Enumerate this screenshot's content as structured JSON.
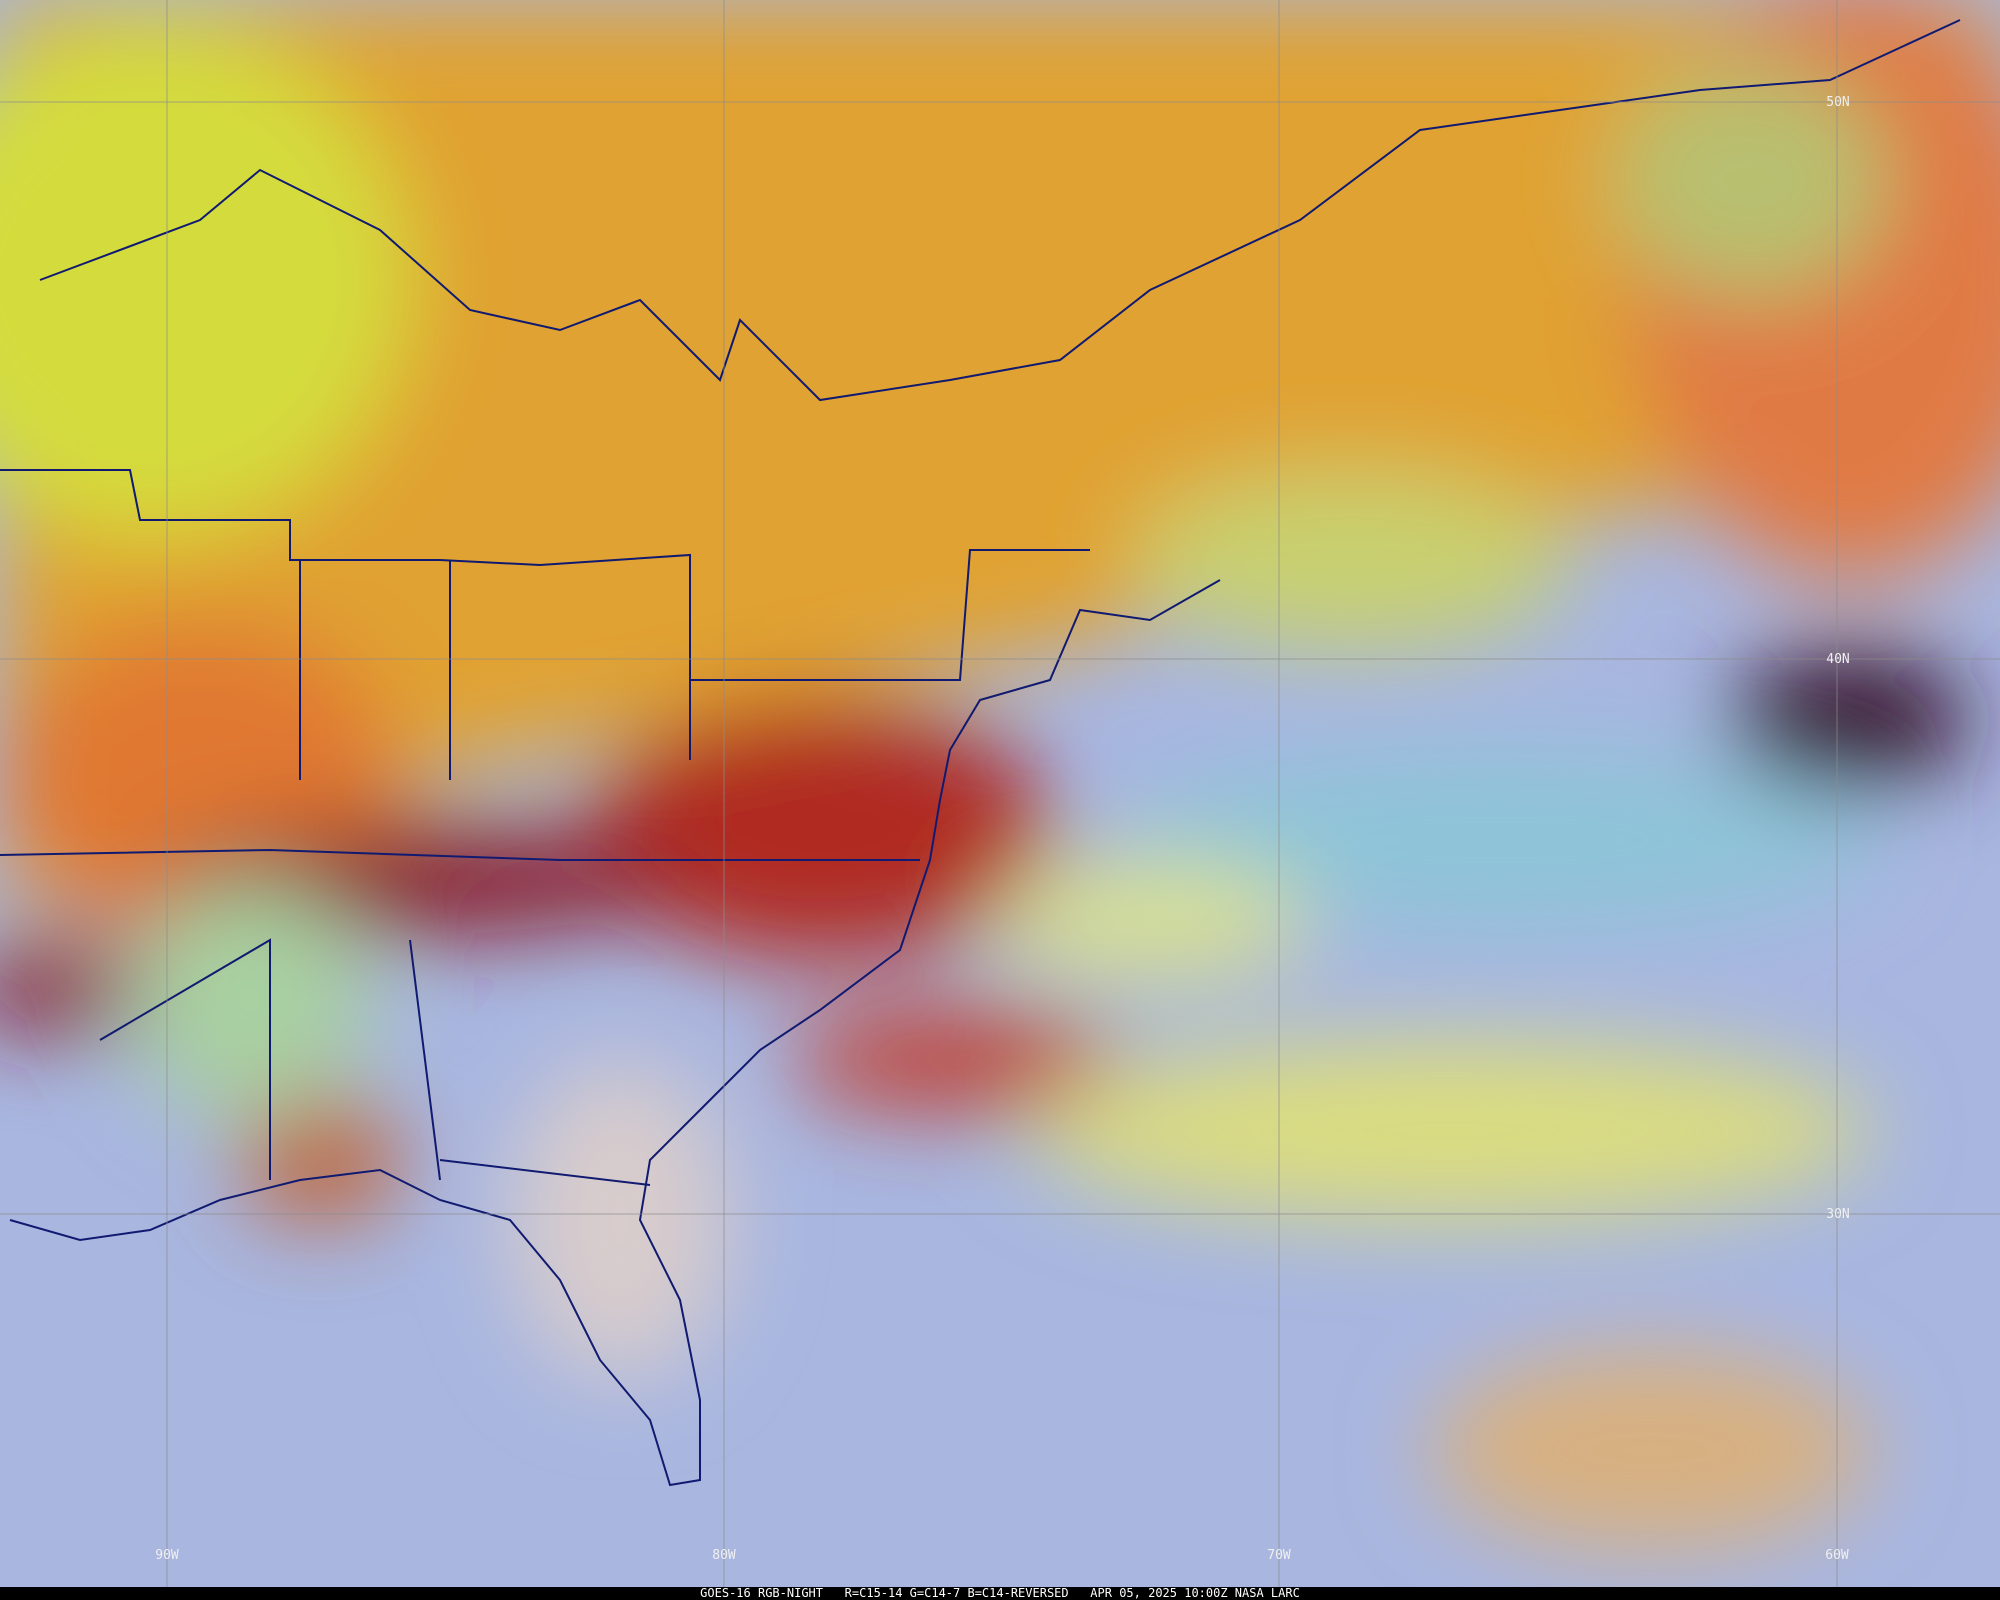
{
  "map": {
    "latitude_labels": [
      "50N",
      "40N",
      "30N"
    ],
    "longitude_labels": [
      "90W",
      "80W",
      "70W",
      "60W"
    ],
    "footer": "GOES-16 RGB-NIGHT   R=C15-14 G=C14-7 B=C14-REVERSED   APR 05, 2025 10:00Z NASA LARC"
  }
}
